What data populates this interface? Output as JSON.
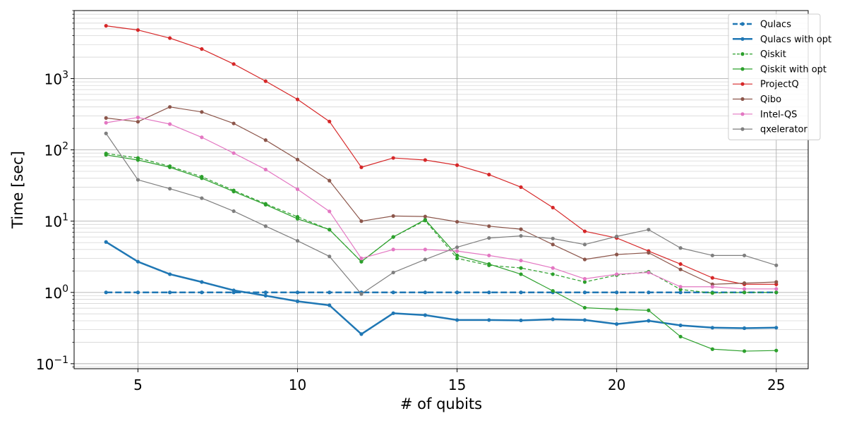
{
  "chart_data": {
    "type": "line",
    "xlabel": "# of qubits",
    "ylabel": "Time [sec]",
    "yscale": "log",
    "xlim": [
      3,
      26
    ],
    "ylim": [
      0.085,
      9000
    ],
    "xticks": [
      5,
      10,
      15,
      20,
      25
    ],
    "ytick_bases": [
      "10",
      "10",
      "10",
      "10",
      "10"
    ],
    "ytick_exponents": [
      "−1",
      "0",
      "1",
      "2",
      "3"
    ],
    "ytick_values": [
      0.1,
      1,
      10,
      100,
      1000
    ],
    "grid": true,
    "legend_position": "top-right",
    "x": [
      4,
      5,
      6,
      7,
      8,
      9,
      10,
      11,
      12,
      13,
      14,
      15,
      16,
      17,
      18,
      19,
      20,
      21,
      22,
      23,
      24,
      25
    ],
    "series": [
      {
        "name": "Qulacs",
        "color": "#1f77b4",
        "style": "dashed",
        "width": 2.5,
        "values": [
          1,
          1,
          1,
          1,
          1,
          1,
          1,
          1,
          1,
          1,
          1,
          1,
          1,
          1,
          1,
          1,
          1,
          1,
          1,
          1,
          1,
          1
        ]
      },
      {
        "name": "Qulacs with opt",
        "color": "#1f77b4",
        "style": "solid",
        "width": 2.5,
        "values": [
          5.1,
          2.7,
          1.8,
          1.4,
          1.07,
          0.9,
          0.75,
          0.66,
          0.26,
          0.51,
          0.48,
          0.41,
          0.41,
          0.405,
          0.42,
          0.41,
          0.36,
          0.4,
          0.345,
          0.32,
          0.315,
          0.32
        ]
      },
      {
        "name": "Qiskit",
        "color": "#2ca02c",
        "style": "dashed",
        "width": 1.2,
        "values": [
          89,
          77,
          59,
          42,
          27,
          17.5,
          11.5,
          7.6,
          2.7,
          6,
          10.2,
          3,
          2.4,
          2.2,
          1.8,
          1.4,
          1.75,
          1.95,
          1.1,
          0.98,
          1,
          1
        ]
      },
      {
        "name": "Qiskit with opt",
        "color": "#2ca02c",
        "style": "solid",
        "width": 1.2,
        "values": [
          85,
          72,
          57,
          40,
          26,
          17,
          10.8,
          7.6,
          2.7,
          6,
          10.5,
          3.3,
          2.5,
          1.8,
          1.05,
          0.61,
          0.58,
          0.56,
          0.24,
          0.16,
          0.15,
          0.153
        ]
      },
      {
        "name": "ProjectQ",
        "color": "#d62728",
        "style": "solid",
        "width": 1.2,
        "values": [
          5500,
          4800,
          3700,
          2600,
          1600,
          920,
          510,
          250,
          57,
          77,
          72,
          61,
          45,
          30,
          15.5,
          7.2,
          5.8,
          3.8,
          2.5,
          1.6,
          1.3,
          1.3
        ]
      },
      {
        "name": "Qibo",
        "color": "#8c564b",
        "style": "solid",
        "width": 1.2,
        "values": [
          280,
          248,
          400,
          340,
          235,
          137,
          73,
          37,
          10,
          11.8,
          11.6,
          9.8,
          8.5,
          7.7,
          4.7,
          2.9,
          3.4,
          3.6,
          2.1,
          1.3,
          1.35,
          1.4
        ]
      },
      {
        "name": "Intel-QS",
        "color": "#e377c2",
        "style": "solid",
        "width": 1.2,
        "values": [
          240,
          285,
          230,
          150,
          90,
          53,
          28,
          13.7,
          3,
          4,
          4,
          3.8,
          3.3,
          2.8,
          2.2,
          1.55,
          1.8,
          1.9,
          1.2,
          1.2,
          1.12,
          1.12
        ]
      },
      {
        "name": "qxelerator",
        "color": "#7f7f7f",
        "style": "solid",
        "width": 1.2,
        "values": [
          170,
          38,
          28.5,
          21,
          13.8,
          8.5,
          5.3,
          3.2,
          0.95,
          1.9,
          2.9,
          4.3,
          5.8,
          6.2,
          5.7,
          4.7,
          6.1,
          7.6,
          4.2,
          3.3,
          3.3,
          2.4
        ]
      }
    ]
  }
}
